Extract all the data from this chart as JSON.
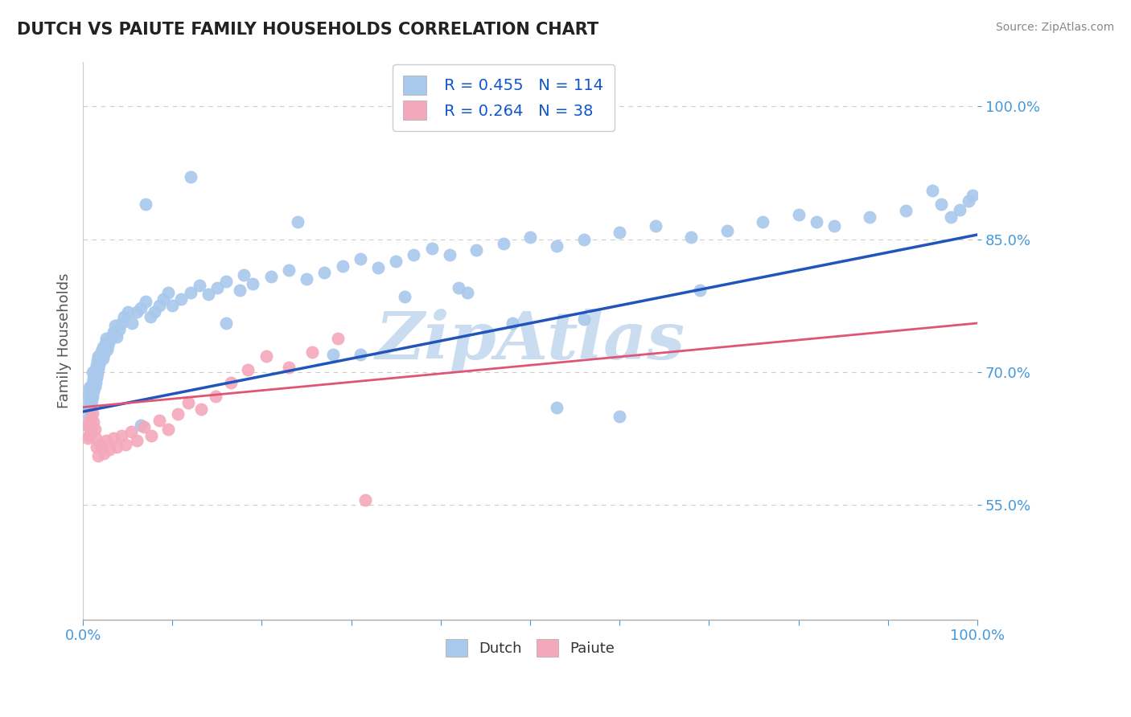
{
  "title": "DUTCH VS PAIUTE FAMILY HOUSEHOLDS CORRELATION CHART",
  "source": "Source: ZipAtlas.com",
  "ylabel": "Family Households",
  "xlim": [
    0.0,
    1.0
  ],
  "ylim": [
    0.42,
    1.05
  ],
  "yticks": [
    0.55,
    0.7,
    0.85,
    1.0
  ],
  "dutch_R": 0.455,
  "dutch_N": 114,
  "paiute_R": 0.264,
  "paiute_N": 38,
  "dutch_color": "#A8C8EC",
  "paiute_color": "#F4A8BC",
  "dutch_line_color": "#2255BB",
  "paiute_line_color": "#E05575",
  "legend_color": "#1155CC",
  "title_color": "#222222",
  "source_color": "#888888",
  "tick_color": "#4499DD",
  "grid_color": "#CCCCCC",
  "background_color": "#FFFFFF",
  "dutch_line_x0": 0.0,
  "dutch_line_y0": 0.655,
  "dutch_line_x1": 1.0,
  "dutch_line_y1": 0.855,
  "paiute_line_x0": 0.0,
  "paiute_line_y0": 0.66,
  "paiute_line_x1": 1.0,
  "paiute_line_y1": 0.755,
  "dutch_x": [
    0.005,
    0.006,
    0.006,
    0.007,
    0.007,
    0.007,
    0.008,
    0.008,
    0.009,
    0.009,
    0.01,
    0.01,
    0.011,
    0.011,
    0.011,
    0.012,
    0.012,
    0.013,
    0.013,
    0.014,
    0.014,
    0.015,
    0.015,
    0.016,
    0.016,
    0.017,
    0.017,
    0.018,
    0.019,
    0.02,
    0.021,
    0.022,
    0.022,
    0.023,
    0.024,
    0.025,
    0.026,
    0.027,
    0.028,
    0.03,
    0.032,
    0.034,
    0.036,
    0.038,
    0.04,
    0.043,
    0.046,
    0.05,
    0.055,
    0.06,
    0.065,
    0.07,
    0.075,
    0.08,
    0.085,
    0.09,
    0.095,
    0.1,
    0.11,
    0.12,
    0.13,
    0.14,
    0.15,
    0.16,
    0.175,
    0.19,
    0.21,
    0.23,
    0.25,
    0.27,
    0.29,
    0.31,
    0.33,
    0.35,
    0.37,
    0.39,
    0.41,
    0.44,
    0.47,
    0.5,
    0.53,
    0.56,
    0.6,
    0.64,
    0.68,
    0.72,
    0.76,
    0.8,
    0.84,
    0.88,
    0.92,
    0.96,
    0.97,
    0.98,
    0.99,
    0.995,
    0.12,
    0.24,
    0.36,
    0.48,
    0.53,
    0.6,
    0.07,
    0.16,
    0.28,
    0.42,
    0.065,
    0.18,
    0.31,
    0.43,
    0.56,
    0.69,
    0.82,
    0.95
  ],
  "dutch_y": [
    0.64,
    0.66,
    0.675,
    0.65,
    0.668,
    0.682,
    0.658,
    0.672,
    0.663,
    0.678,
    0.668,
    0.683,
    0.672,
    0.688,
    0.7,
    0.678,
    0.692,
    0.683,
    0.698,
    0.688,
    0.703,
    0.693,
    0.708,
    0.698,
    0.713,
    0.703,
    0.718,
    0.708,
    0.713,
    0.718,
    0.723,
    0.728,
    0.715,
    0.72,
    0.725,
    0.732,
    0.738,
    0.725,
    0.73,
    0.735,
    0.74,
    0.745,
    0.752,
    0.74,
    0.748,
    0.755,
    0.762,
    0.768,
    0.755,
    0.768,
    0.772,
    0.78,
    0.762,
    0.768,
    0.775,
    0.782,
    0.79,
    0.775,
    0.782,
    0.79,
    0.798,
    0.788,
    0.795,
    0.802,
    0.792,
    0.8,
    0.808,
    0.815,
    0.805,
    0.812,
    0.82,
    0.828,
    0.818,
    0.825,
    0.832,
    0.84,
    0.832,
    0.838,
    0.845,
    0.852,
    0.842,
    0.85,
    0.858,
    0.865,
    0.852,
    0.86,
    0.87,
    0.878,
    0.865,
    0.875,
    0.882,
    0.89,
    0.875,
    0.883,
    0.893,
    0.9,
    0.92,
    0.87,
    0.785,
    0.755,
    0.66,
    0.65,
    0.89,
    0.755,
    0.72,
    0.795,
    0.64,
    0.81,
    0.72,
    0.79,
    0.76,
    0.792,
    0.87,
    0.905
  ],
  "paiute_x": [
    0.005,
    0.006,
    0.007,
    0.007,
    0.008,
    0.009,
    0.01,
    0.011,
    0.012,
    0.013,
    0.014,
    0.015,
    0.017,
    0.02,
    0.023,
    0.026,
    0.03,
    0.034,
    0.038,
    0.043,
    0.048,
    0.054,
    0.06,
    0.068,
    0.076,
    0.085,
    0.095,
    0.106,
    0.118,
    0.132,
    0.148,
    0.165,
    0.184,
    0.205,
    0.23,
    0.256,
    0.285,
    0.316
  ],
  "paiute_y": [
    0.625,
    0.64,
    0.628,
    0.643,
    0.633,
    0.648,
    0.638,
    0.653,
    0.643,
    0.635,
    0.625,
    0.615,
    0.605,
    0.618,
    0.608,
    0.622,
    0.612,
    0.625,
    0.615,
    0.628,
    0.618,
    0.632,
    0.622,
    0.638,
    0.628,
    0.645,
    0.635,
    0.652,
    0.665,
    0.658,
    0.672,
    0.688,
    0.702,
    0.718,
    0.705,
    0.722,
    0.738,
    0.555
  ],
  "watermark": "ZipAtlas",
  "watermark_color": "#CADCF0",
  "figsize": [
    14.06,
    8.92
  ],
  "dpi": 100,
  "xtick_positions": [
    0.0,
    0.1,
    0.2,
    0.3,
    0.4,
    0.5,
    0.6,
    0.7,
    0.8,
    0.9,
    1.0
  ]
}
